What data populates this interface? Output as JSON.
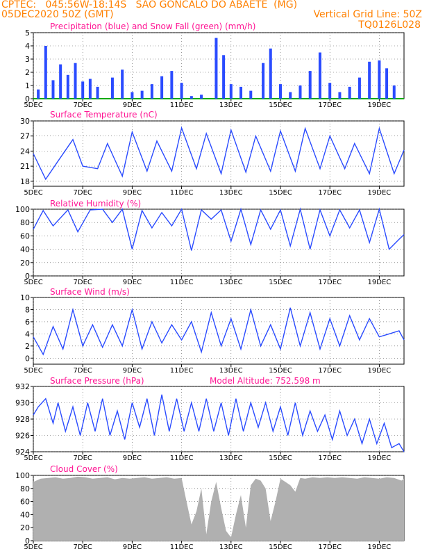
{
  "header": {
    "line1": "CPTEC:   045:56W-18:14S   SAO GONCALO DO ABAETE  (MG)",
    "line2": "05DEC2020 50Z (GMT)",
    "grid_note": "Vertical Grid Line: 50Z",
    "code": "TQ0126L028"
  },
  "colors": {
    "header": "#ff8000",
    "title": "#ff1493",
    "series": "#2a4bff",
    "snow": "#00aa00",
    "cloud": "#b0b0b0",
    "grid": "#555555"
  },
  "x_axis": {
    "day_min": 5,
    "day_max": 20,
    "tick_days": [
      5,
      7,
      9,
      11,
      13,
      15,
      17,
      19
    ],
    "tick_labels": [
      "5DEC",
      "7DEC",
      "9DEC",
      "11DEC",
      "13DEC",
      "15DEC",
      "17DEC",
      "19DEC"
    ]
  },
  "chart_data": [
    {
      "id": "precip",
      "type": "bar",
      "title": "Precipitation (blue) and Snow Fall (green) (mm/h)",
      "ylim": [
        0,
        5
      ],
      "yticks": [
        0,
        1,
        2,
        3,
        4,
        5
      ],
      "series": [
        {
          "color": "#2a4bff",
          "x": [
            5.2,
            5.5,
            5.8,
            6.1,
            6.4,
            6.7,
            7.0,
            7.3,
            7.6,
            8.2,
            8.6,
            9.0,
            9.4,
            9.8,
            10.2,
            10.6,
            11.0,
            11.4,
            11.8,
            12.4,
            12.7,
            13.0,
            13.4,
            13.8,
            14.3,
            14.6,
            15.0,
            15.4,
            15.8,
            16.2,
            16.6,
            17.0,
            17.4,
            17.8,
            18.2,
            18.6,
            19.0,
            19.3,
            19.6
          ],
          "values": [
            0.7,
            4.0,
            1.4,
            2.6,
            1.8,
            2.7,
            1.3,
            1.5,
            0.9,
            1.6,
            2.2,
            0.5,
            0.6,
            1.1,
            1.7,
            2.1,
            1.2,
            0.2,
            0.3,
            4.6,
            3.3,
            1.1,
            0.9,
            0.6,
            2.7,
            3.8,
            1.1,
            0.5,
            1.0,
            2.1,
            3.5,
            1.2,
            0.5,
            0.9,
            1.6,
            2.8,
            2.9,
            2.3,
            1.0
          ]
        },
        {
          "color": "#00aa00",
          "values": [
            0
          ]
        }
      ]
    },
    {
      "id": "temperature",
      "type": "line",
      "title": "Surface Temperature (nC)",
      "ylim": [
        17,
        30
      ],
      "yticks": [
        18,
        21,
        24,
        27,
        30
      ],
      "series": [
        {
          "color": "#2a4bff",
          "x": [
            5.0,
            5.5,
            6.0,
            6.6,
            7.0,
            7.6,
            8.0,
            8.6,
            9.0,
            9.6,
            10.0,
            10.6,
            11.0,
            11.6,
            12.0,
            12.6,
            13.0,
            13.6,
            14.0,
            14.6,
            15.0,
            15.6,
            16.0,
            16.6,
            17.0,
            17.6,
            18.0,
            18.6,
            19.0,
            19.6,
            20.0
          ],
          "values": [
            23.5,
            18.4,
            22.0,
            26.3,
            21.0,
            20.5,
            25.5,
            19.0,
            27.8,
            20.0,
            26.0,
            20.0,
            28.6,
            20.5,
            27.5,
            19.5,
            28.2,
            19.8,
            27.0,
            20.0,
            28.0,
            20.0,
            28.5,
            20.5,
            27.0,
            20.5,
            25.5,
            19.5,
            28.5,
            19.5,
            24.2
          ]
        }
      ]
    },
    {
      "id": "humidity",
      "type": "line",
      "title": "Relative Humidity (%)",
      "ylim": [
        0,
        100
      ],
      "yticks": [
        0,
        20,
        40,
        60,
        80,
        100
      ],
      "series": [
        {
          "color": "#2a4bff",
          "x": [
            5.0,
            5.4,
            5.8,
            6.4,
            6.8,
            7.3,
            7.8,
            8.2,
            8.6,
            9.0,
            9.4,
            9.8,
            10.2,
            10.6,
            11.0,
            11.4,
            11.8,
            12.2,
            12.6,
            13.0,
            13.4,
            13.8,
            14.2,
            14.6,
            15.0,
            15.4,
            15.8,
            16.2,
            16.6,
            17.0,
            17.4,
            17.8,
            18.2,
            18.6,
            19.0,
            19.4,
            19.8,
            20.0
          ],
          "values": [
            70,
            98,
            75,
            99,
            66,
            99,
            100,
            80,
            100,
            40,
            98,
            72,
            95,
            75,
            100,
            38,
            99,
            85,
            99,
            52,
            100,
            47,
            99,
            70,
            99,
            45,
            100,
            40,
            99,
            60,
            99,
            72,
            99,
            50,
            100,
            40,
            55,
            62
          ]
        }
      ]
    },
    {
      "id": "wind",
      "type": "line",
      "title": "Surface Wind (m/s)",
      "ylim": [
        -1,
        10
      ],
      "yticks": [
        0,
        2,
        4,
        6,
        8,
        10
      ],
      "series": [
        {
          "color": "#2a4bff",
          "x": [
            5.0,
            5.4,
            5.8,
            6.2,
            6.6,
            7.0,
            7.4,
            7.8,
            8.2,
            8.6,
            9.0,
            9.4,
            9.8,
            10.2,
            10.6,
            11.0,
            11.4,
            11.8,
            12.2,
            12.6,
            13.0,
            13.4,
            13.8,
            14.2,
            14.6,
            15.0,
            15.4,
            15.8,
            16.2,
            16.6,
            17.0,
            17.4,
            17.8,
            18.2,
            18.6,
            19.0,
            19.4,
            19.8,
            20.0
          ],
          "values": [
            3.5,
            0.6,
            5.2,
            1.5,
            8.0,
            2.0,
            5.5,
            1.8,
            5.5,
            2.0,
            8.0,
            1.5,
            6.0,
            2.5,
            5.5,
            3.0,
            6.0,
            1.0,
            7.5,
            2.0,
            6.5,
            1.5,
            8.0,
            2.0,
            5.5,
            1.5,
            8.3,
            2.0,
            7.5,
            1.5,
            6.5,
            2.0,
            7.0,
            3.0,
            6.5,
            3.5,
            4.0,
            4.5,
            3.0
          ]
        }
      ]
    },
    {
      "id": "pressure",
      "type": "line",
      "title": "Surface Pressure (hPa)",
      "extra_label": "Model Altitude: 752.598  m",
      "ylim": [
        924,
        932
      ],
      "yticks": [
        924,
        926,
        928,
        930,
        932
      ],
      "series": [
        {
          "color": "#2a4bff",
          "x": [
            5.0,
            5.2,
            5.5,
            5.8,
            6.0,
            6.3,
            6.6,
            6.9,
            7.2,
            7.5,
            7.8,
            8.1,
            8.4,
            8.7,
            9.0,
            9.3,
            9.6,
            9.9,
            10.2,
            10.5,
            10.8,
            11.1,
            11.4,
            11.7,
            12.0,
            12.3,
            12.6,
            12.9,
            13.2,
            13.5,
            13.8,
            14.1,
            14.4,
            14.7,
            15.0,
            15.3,
            15.6,
            15.9,
            16.2,
            16.5,
            16.8,
            17.1,
            17.4,
            17.7,
            18.0,
            18.3,
            18.6,
            18.9,
            19.2,
            19.5,
            19.8,
            20.0
          ],
          "values": [
            928.5,
            929.5,
            930.5,
            927.5,
            930.0,
            926.5,
            929.5,
            926.0,
            930.0,
            926.5,
            930.5,
            926.0,
            929.0,
            925.5,
            930.0,
            927.0,
            930.5,
            926.0,
            931.0,
            926.5,
            930.5,
            926.5,
            930.0,
            926.5,
            930.5,
            926.5,
            930.0,
            926.0,
            930.5,
            926.5,
            930.0,
            927.0,
            930.0,
            926.5,
            929.5,
            926.0,
            930.0,
            926.0,
            929.0,
            926.5,
            928.5,
            925.5,
            929.0,
            926.0,
            928.0,
            925.0,
            928.0,
            925.0,
            927.5,
            924.5,
            925.0,
            924.0
          ]
        }
      ]
    },
    {
      "id": "cloud",
      "type": "area",
      "title": "Cloud Cover (%)",
      "ylim": [
        0,
        100
      ],
      "yticks": [
        0,
        20,
        40,
        60,
        80,
        100
      ],
      "series": [
        {
          "color": "#b0b0b0",
          "x": [
            5.0,
            5.3,
            5.6,
            5.9,
            6.2,
            6.5,
            6.8,
            7.1,
            7.4,
            7.7,
            8.0,
            8.3,
            8.6,
            8.9,
            9.2,
            9.5,
            9.8,
            10.1,
            10.4,
            10.7,
            11.0,
            11.2,
            11.4,
            11.6,
            11.8,
            12.0,
            12.2,
            12.4,
            12.6,
            12.8,
            13.0,
            13.2,
            13.4,
            13.6,
            13.8,
            14.0,
            14.2,
            14.4,
            14.6,
            14.8,
            15.0,
            15.2,
            15.4,
            15.6,
            15.8,
            16.0,
            16.3,
            16.6,
            16.9,
            17.2,
            17.5,
            17.8,
            18.1,
            18.4,
            18.7,
            19.0,
            19.3,
            19.6,
            19.9,
            20.0
          ],
          "values": [
            90,
            95,
            96,
            97,
            95,
            96,
            98,
            97,
            95,
            96,
            97,
            94,
            96,
            95,
            96,
            97,
            95,
            96,
            97,
            95,
            96,
            60,
            25,
            45,
            80,
            10,
            60,
            90,
            50,
            15,
            5,
            40,
            70,
            20,
            85,
            95,
            92,
            80,
            30,
            60,
            95,
            90,
            85,
            75,
            96,
            95,
            97,
            96,
            97,
            96,
            97,
            96,
            95,
            97,
            96,
            95,
            97,
            96,
            92,
            95
          ]
        }
      ]
    }
  ]
}
